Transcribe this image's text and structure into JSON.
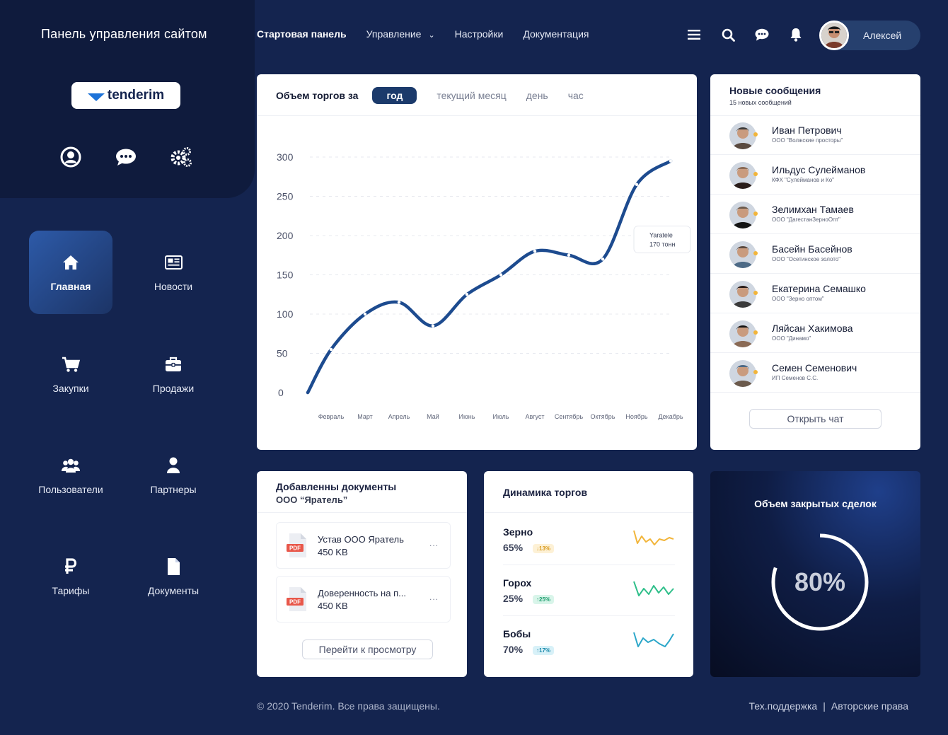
{
  "header": {
    "site_title": "Панель управления сайтом",
    "nav": [
      {
        "label": "Стартовая панель",
        "active": true
      },
      {
        "label": "Управление",
        "has_dropdown": true
      },
      {
        "label": "Настройки"
      },
      {
        "label": "Документация"
      }
    ],
    "icons": [
      "menu-icon",
      "search-icon",
      "chat-icon",
      "bell-icon"
    ],
    "user_name": "Алексей"
  },
  "sidebar": {
    "logo_text": "tenderim",
    "quick_icons": [
      "user-icon",
      "chat-icon",
      "gears-icon"
    ],
    "items": [
      {
        "label": "Главная",
        "icon": "home-icon",
        "active": true
      },
      {
        "label": "Новости",
        "icon": "news-icon"
      },
      {
        "label": "Закупки",
        "icon": "cart-icon"
      },
      {
        "label": "Продажи",
        "icon": "briefcase-icon"
      },
      {
        "label": "Пользователи",
        "icon": "users-icon"
      },
      {
        "label": "Партнеры",
        "icon": "partner-icon"
      },
      {
        "label": "Тарифы",
        "icon": "ruble-icon"
      },
      {
        "label": "Документы",
        "icon": "document-icon"
      }
    ]
  },
  "trade_chart": {
    "title": "Объем торгов за",
    "tabs": [
      {
        "label": "год",
        "active": true
      },
      {
        "label": "текущий месяц"
      },
      {
        "label": "день"
      },
      {
        "label": "час"
      }
    ],
    "tooltip": {
      "line1": "Yaratele",
      "line2": "170 тонн"
    }
  },
  "chart_data": {
    "type": "line",
    "title": "Объем торгов за",
    "categories": [
      "Февраль",
      "Март",
      "Апрель",
      "Май",
      "Июнь",
      "Июль",
      "Август",
      "Сентябрь",
      "Октябрь",
      "Ноябрь",
      "Декабрь"
    ],
    "series": [
      {
        "values": [
          55,
          100,
          115,
          85,
          125,
          150,
          180,
          175,
          170,
          265,
          295
        ]
      }
    ],
    "ylim": [
      0,
      300
    ],
    "yticks": [
      0,
      50,
      100,
      150,
      200,
      250,
      300
    ],
    "grid": true,
    "color": "#1d4b8f"
  },
  "messages": {
    "title": "Новые сообщения",
    "subtitle": "15 новых сообщений",
    "items": [
      {
        "name": "Иван Петрович",
        "org": "ООО \"Волжские просторы\""
      },
      {
        "name": "Ильдус Сулейманов",
        "org": "КФХ \"Сулейманов и Ко\""
      },
      {
        "name": "Зелимхан Тамаев",
        "org": "ООО \"ДагестанЗерноОпт\""
      },
      {
        "name": "Басейн Басейнов",
        "org": "ООО \"Осетинское золото\""
      },
      {
        "name": "Екатерина Семашко",
        "org": "ООО \"Зерно оптом\""
      },
      {
        "name": "Ляйсан Хакимова",
        "org": "ООО \"Динамо\""
      },
      {
        "name": "Семен Семенович",
        "org": "ИП Семенов С.С."
      }
    ],
    "open_chat": "Открыть чат"
  },
  "documents": {
    "title": "Добавленны документы",
    "subtitle": "ООО “Яратель”",
    "items": [
      {
        "name": "Устав ООО Яратель",
        "size": "450 KB",
        "type": "PDF"
      },
      {
        "name": "Доверенность на п...",
        "size": "450 KB",
        "type": "PDF"
      }
    ],
    "more": "...",
    "goto": "Перейти к просмотру"
  },
  "dynamics": {
    "title": "Динамика торгов",
    "items": [
      {
        "name": "Зерно",
        "value": "65%",
        "change": "↓13%",
        "color": "#f2b53a",
        "badge_bg": "#fdf1d6",
        "badge_fg": "#d99a1c"
      },
      {
        "name": "Горох",
        "value": "25%",
        "change": "↑25%",
        "color": "#2fbf8a",
        "badge_bg": "#d9f5ea",
        "badge_fg": "#1f9e6f"
      },
      {
        "name": "Бобы",
        "value": "70%",
        "change": "↑17%",
        "color": "#2aa6c9",
        "badge_bg": "#d8f1f8",
        "badge_fg": "#1c8aab"
      }
    ]
  },
  "deals": {
    "title": "Объем закрытых сделок",
    "value": "80%",
    "progress": 0.8
  },
  "footer": {
    "copyright": "© 2020 Tenderim. Все права защищены.",
    "support": "Тех.поддержка",
    "separator": "|",
    "rights": "Авторские права"
  }
}
